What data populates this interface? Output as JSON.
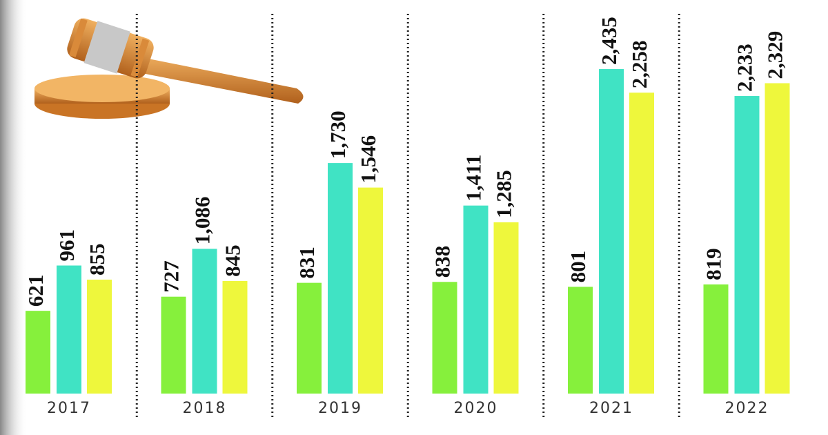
{
  "chart_data": {
    "type": "bar",
    "categories": [
      "2017",
      "2018",
      "2019",
      "2020",
      "2021",
      "2022"
    ],
    "series": [
      {
        "color": "#86f03c",
        "values": [
          621,
          727,
          831,
          838,
          801,
          819
        ],
        "value_labels": [
          "621",
          "727",
          "831",
          "838",
          "801",
          "819"
        ]
      },
      {
        "color": "#40e3c4",
        "values": [
          961,
          1086,
          1730,
          1411,
          2435,
          2233
        ],
        "value_labels": [
          "961",
          "1,086",
          "1,730",
          "1,411",
          "2,435",
          "2,233"
        ]
      },
      {
        "color": "#eef73c",
        "values": [
          855,
          845,
          1546,
          1285,
          2258,
          2329
        ],
        "value_labels": [
          "855",
          "845",
          "1,546",
          "1,285",
          "2,258",
          "2,329"
        ]
      }
    ]
  }
}
